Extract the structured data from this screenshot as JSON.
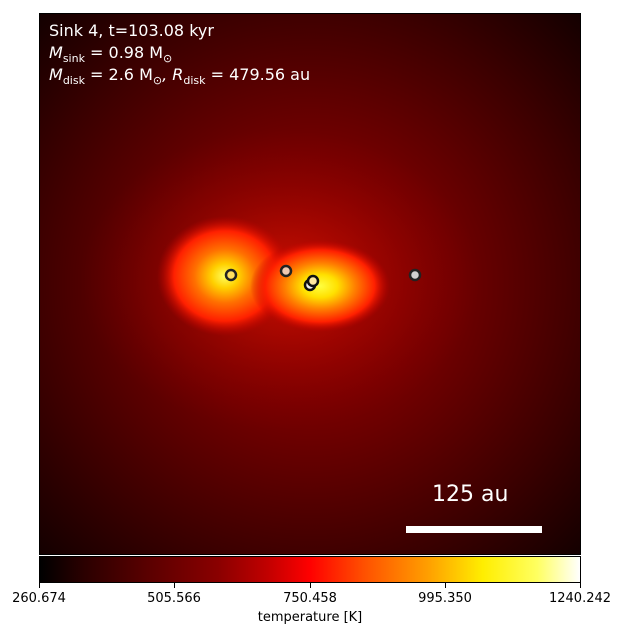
{
  "annotations": {
    "title": "Sink 4, t=103.08 kyr",
    "msink_symbol": "M",
    "msink_sub": "sink",
    "msink_value": " = 0.98 M",
    "msink_sun": "⊙",
    "mdisk_symbol": "M",
    "mdisk_sub": "disk",
    "mdisk_value": " = 2.6 M",
    "mdisk_sun": "⊙",
    "rdisk_symbol": ", R",
    "rdisk_sub": "disk",
    "rdisk_value": " = 479.56 au"
  },
  "scale_bar": {
    "label": "125 au"
  },
  "colorbar": {
    "label": "temperature [K]",
    "ticks": [
      "260.674",
      "505.566",
      "750.458",
      "995.350",
      "1240.242"
    ]
  },
  "colors": {
    "background": "#3a0000",
    "hot": "#ffff40"
  }
}
